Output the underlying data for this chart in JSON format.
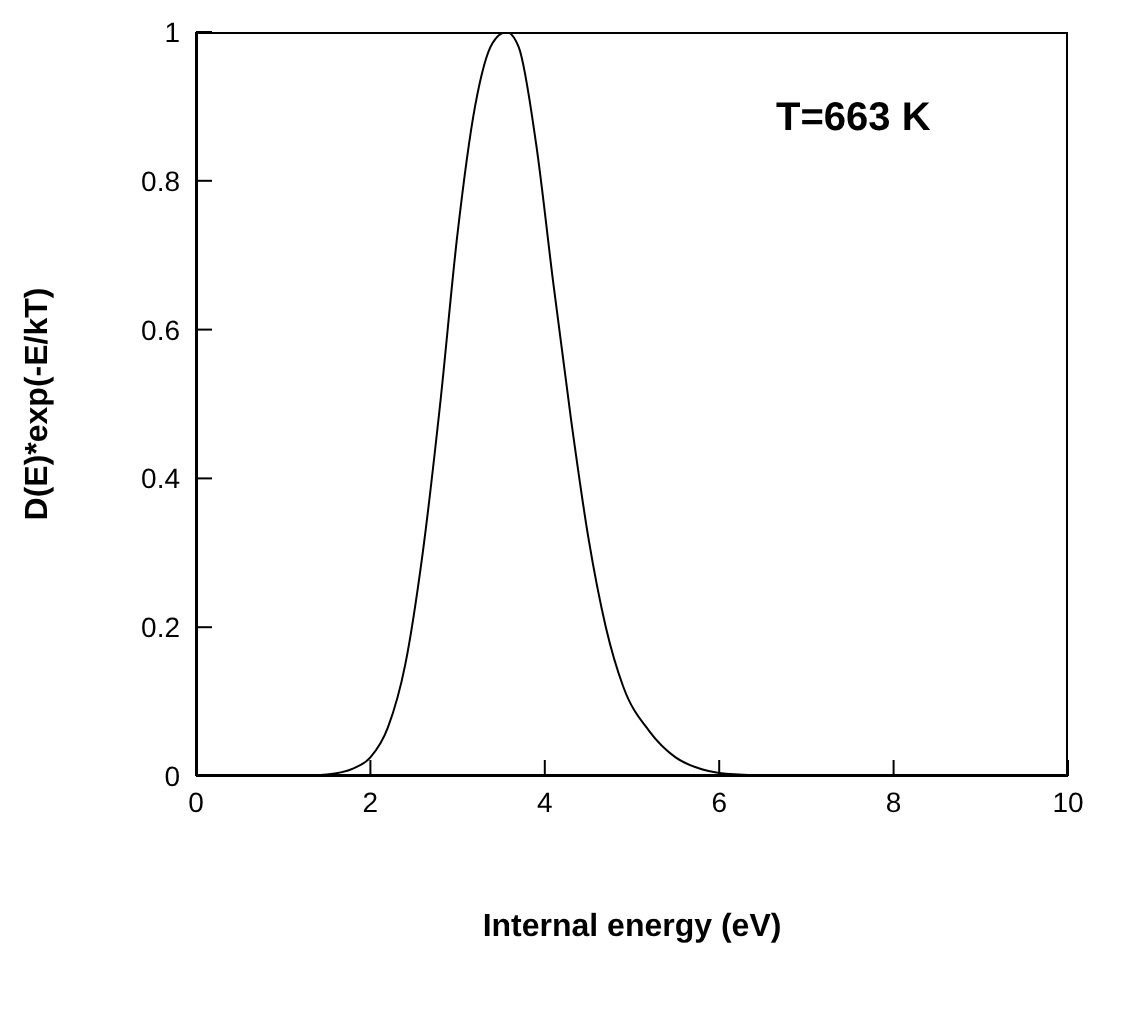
{
  "chart_data": {
    "type": "line",
    "xlabel": "Internal energy (eV)",
    "ylabel": "D(E)*exp(-E/kT)",
    "annotations": [
      "T=663 K"
    ],
    "x": [
      0,
      1.2,
      1.5,
      1.8,
      2.0,
      2.2,
      2.4,
      2.6,
      2.8,
      3.0,
      3.2,
      3.4,
      3.56,
      3.7,
      3.9,
      4.1,
      4.3,
      4.5,
      4.7,
      4.9,
      5.2,
      5.5,
      5.8,
      6.0,
      6.4,
      7,
      10
    ],
    "series": [
      {
        "color": "#000000",
        "values": [
          0,
          0,
          0.002,
          0.01,
          0.025,
          0.065,
          0.15,
          0.3,
          0.5,
          0.73,
          0.9,
          0.985,
          1,
          0.98,
          0.85,
          0.66,
          0.48,
          0.32,
          0.2,
          0.12,
          0.06,
          0.025,
          0.009,
          0.004,
          0.001,
          0,
          0
        ]
      }
    ],
    "xlim": [
      0,
      10
    ],
    "xticks": [
      0,
      2,
      4,
      6,
      8,
      10
    ],
    "ylim": [
      0,
      1
    ],
    "yticks": [
      0,
      0.2,
      0.4,
      0.6,
      0.8,
      1
    ],
    "grid": false,
    "legend": false,
    "marker": "none",
    "line_style": "solid"
  }
}
